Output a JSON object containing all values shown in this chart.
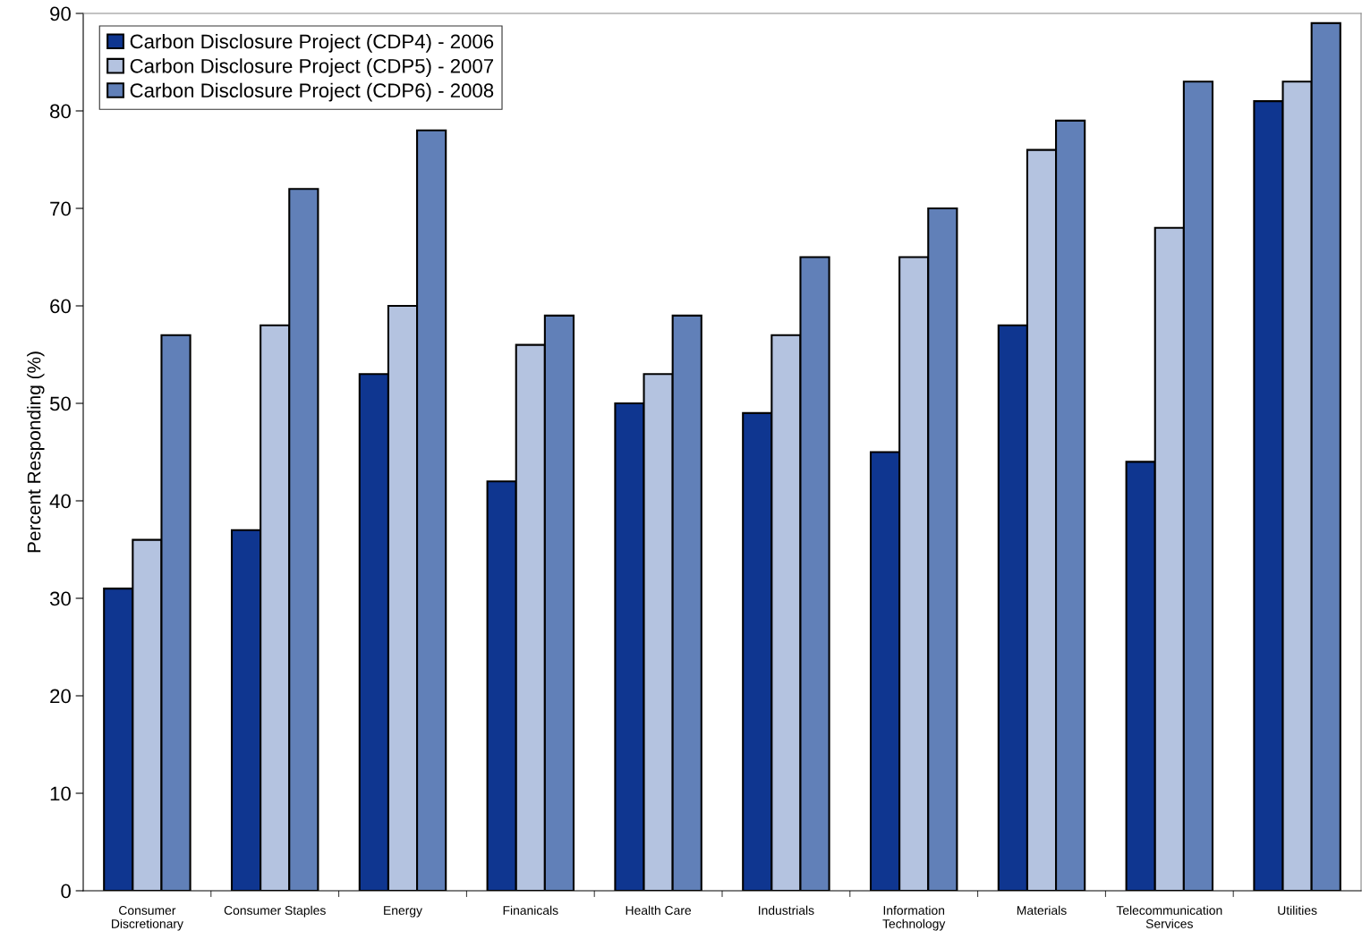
{
  "chart_data": {
    "type": "bar",
    "ylabel": "Percent Responding (%)",
    "categories": [
      "Consumer\nDiscretionary",
      "Consumer Staples",
      "Energy",
      "Finanicals",
      "Health Care",
      "Industrials",
      "Information\nTechnology",
      "Materials",
      "Telecommunication\nServices",
      "Utilities"
    ],
    "series": [
      {
        "name": "Carbon Disclosure Project (CDP4) - 2006",
        "color": "#0f3690",
        "values": [
          31,
          37,
          53,
          42,
          50,
          49,
          45,
          58,
          44,
          81
        ]
      },
      {
        "name": "Carbon Disclosure Project (CDP5) - 2007",
        "color": "#b4c3e0",
        "values": [
          36,
          58,
          60,
          56,
          53,
          57,
          65,
          76,
          68,
          83
        ]
      },
      {
        "name": "Carbon Disclosure Project (CDP6) - 2008",
        "color": "#6180b8",
        "values": [
          57,
          72,
          78,
          59,
          59,
          65,
          70,
          79,
          83,
          89
        ]
      }
    ],
    "ylim": [
      0,
      90
    ],
    "yticks": [
      0,
      10,
      20,
      30,
      40,
      50,
      60,
      70,
      80,
      90
    ],
    "grid": false,
    "legend": "top left"
  }
}
